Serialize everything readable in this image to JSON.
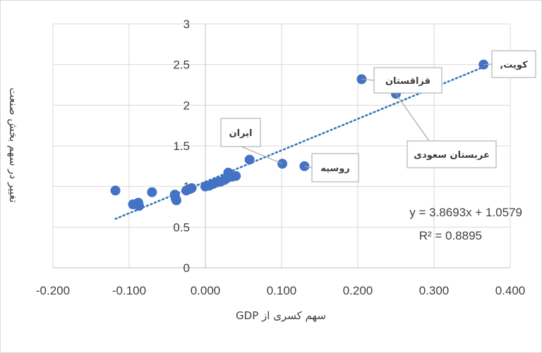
{
  "chart_data": {
    "type": "scatter",
    "title": "",
    "xlabel": "سهم کسری از GDP",
    "ylabel": "تغییر در سهم بخش صنعت",
    "xlim": [
      -0.2,
      0.4
    ],
    "ylim": [
      0,
      3
    ],
    "x_tick_labels": [
      "-0.200",
      "-0.100",
      "0.000",
      "0.100",
      "0.200",
      "0.300",
      "0.400"
    ],
    "x_tick_values": [
      -0.2,
      -0.1,
      0.0,
      0.1,
      0.2,
      0.3,
      0.4
    ],
    "y_tick_labels": [
      "0",
      "0.5",
      "1",
      "1.5",
      "2",
      "2.5",
      "3"
    ],
    "y_tick_values": [
      0,
      0.5,
      1,
      1.5,
      2,
      2.5,
      3
    ],
    "grid": "vertical and horizontal major gridlines",
    "point_color": "#4472c4",
    "trendline": {
      "type": "linear",
      "slope": 3.8693,
      "intercept": 1.0579,
      "x_range": [
        -0.118,
        0.365
      ],
      "color": "#2e75b6",
      "style": "dotted",
      "equation_label": "y = 3.8693x + 1.0579",
      "r2_label": "R² = 0.8895"
    },
    "points": [
      {
        "x": -0.118,
        "y": 0.95
      },
      {
        "x": -0.095,
        "y": 0.78
      },
      {
        "x": -0.088,
        "y": 0.8
      },
      {
        "x": -0.087,
        "y": 0.76
      },
      {
        "x": -0.07,
        "y": 0.93
      },
      {
        "x": -0.04,
        "y": 0.9
      },
      {
        "x": -0.039,
        "y": 0.85
      },
      {
        "x": -0.038,
        "y": 0.83
      },
      {
        "x": -0.025,
        "y": 0.95
      },
      {
        "x": -0.02,
        "y": 0.97
      },
      {
        "x": -0.018,
        "y": 0.98
      },
      {
        "x": 0.0,
        "y": 1.0
      },
      {
        "x": 0.005,
        "y": 1.01
      },
      {
        "x": 0.01,
        "y": 1.03
      },
      {
        "x": 0.015,
        "y": 1.05
      },
      {
        "x": 0.02,
        "y": 1.06
      },
      {
        "x": 0.025,
        "y": 1.08
      },
      {
        "x": 0.028,
        "y": 1.1
      },
      {
        "x": 0.03,
        "y": 1.17
      },
      {
        "x": 0.035,
        "y": 1.12
      },
      {
        "x": 0.04,
        "y": 1.13
      },
      {
        "x": 0.058,
        "y": 1.33
      },
      {
        "x": 0.101,
        "y": 1.28
      },
      {
        "x": 0.13,
        "y": 1.25
      },
      {
        "x": 0.205,
        "y": 2.32
      },
      {
        "x": 0.25,
        "y": 2.14
      },
      {
        "x": 0.365,
        "y": 2.5
      }
    ],
    "annotations": [
      {
        "text": "ایران",
        "x": 0.101,
        "y": 1.28
      },
      {
        "text": "روسیه",
        "x": 0.13,
        "y": 1.25
      },
      {
        "text": "قزاقستان",
        "x": 0.205,
        "y": 2.32
      },
      {
        "text": "عربستان سعودی",
        "x": 0.25,
        "y": 2.14
      },
      {
        "text": "کویت,",
        "x": 0.365,
        "y": 2.5
      }
    ]
  }
}
